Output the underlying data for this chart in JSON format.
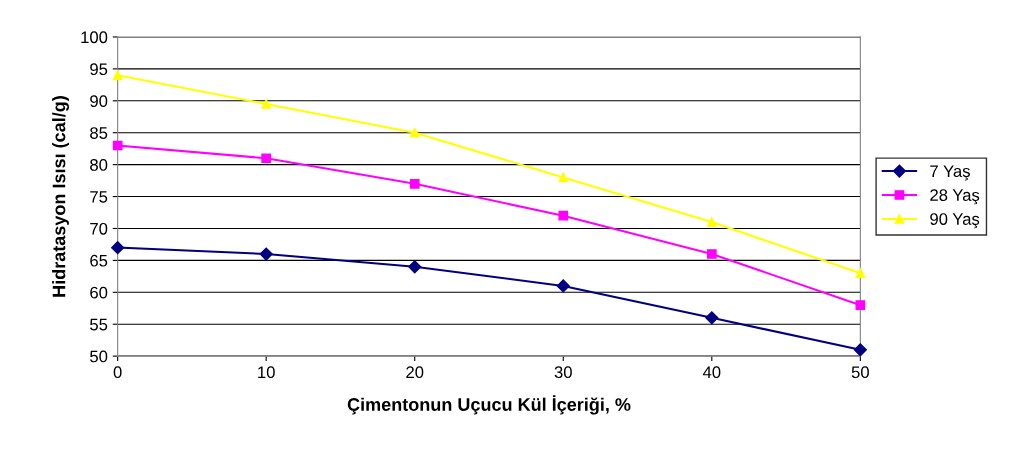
{
  "chart_data": {
    "type": "line",
    "xlabel": "Çimentonun Uçucu Kül İçeriği, %",
    "ylabel": "Hidratasyon Isısı (cal/g)",
    "x": [
      0,
      10,
      20,
      30,
      40,
      50
    ],
    "series": [
      {
        "name": "7 Yaş",
        "color": "#000080",
        "marker": "diamond",
        "values": [
          67,
          66,
          64,
          61,
          56,
          51
        ]
      },
      {
        "name": "28 Yaş",
        "color": "#ff00ff",
        "marker": "square",
        "values": [
          83,
          81,
          77,
          72,
          66,
          58
        ]
      },
      {
        "name": "90 Yaş",
        "color": "#ffff00",
        "marker": "triangle",
        "values": [
          94,
          89.5,
          85,
          78,
          71,
          63
        ]
      }
    ],
    "xlim": [
      0,
      50
    ],
    "xticks": [
      0,
      10,
      20,
      30,
      40,
      50
    ],
    "ylim": [
      50,
      100
    ],
    "yticks": [
      50,
      55,
      60,
      65,
      70,
      75,
      80,
      85,
      90,
      95,
      100
    ],
    "grid": "y",
    "legend": "right"
  }
}
